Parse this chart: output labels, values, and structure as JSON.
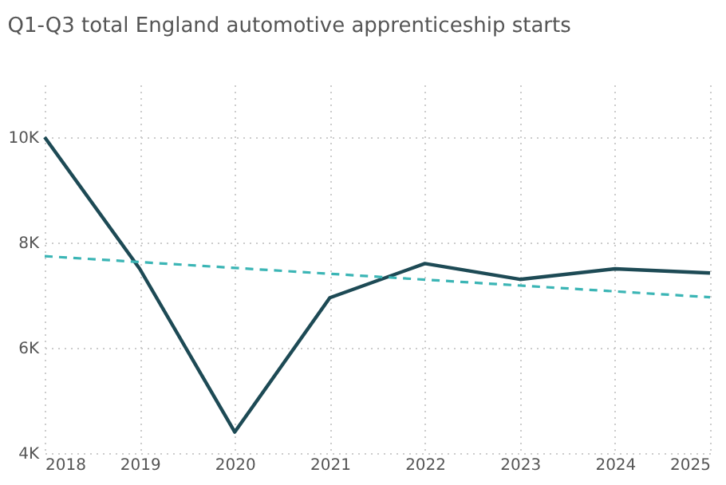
{
  "chart_data": {
    "type": "line",
    "title": "Q1-Q3 total England automotive apprenticeship starts",
    "x": [
      2018,
      2019,
      2020,
      2021,
      2022,
      2023,
      2024,
      2025
    ],
    "series": [
      {
        "color": "#1d4a55",
        "values": [
          10000,
          7500,
          4400,
          6950,
          7600,
          7300,
          7500,
          7420
        ]
      },
      {
        "type": "line",
        "x": [
          2018,
          2025
        ],
        "color": "#3bb5b5",
        "line_style": "dashed",
        "values": [
          7740,
          6960
        ]
      }
    ],
    "xlim": [
      2018,
      2025
    ],
    "xticks": [
      2018,
      2019,
      2020,
      2021,
      2022,
      2023,
      2024,
      2025
    ],
    "ylim": [
      4000,
      11000
    ],
    "yticks": [
      {
        "value": 4000,
        "label": "4K"
      },
      {
        "value": 6000,
        "label": "6K"
      },
      {
        "value": 8000,
        "label": "8K"
      },
      {
        "value": 10000,
        "label": "10K"
      }
    ],
    "grid": true,
    "marker": "none",
    "line_style": "solid"
  }
}
